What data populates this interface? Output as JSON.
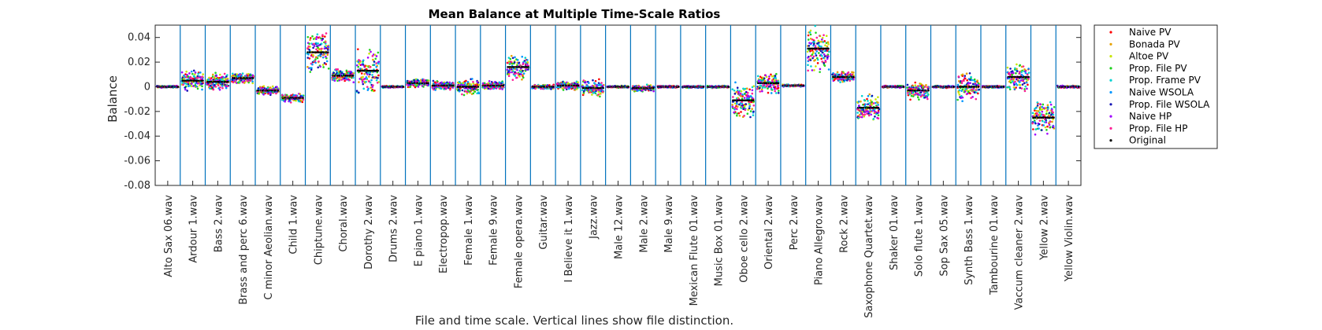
{
  "chart_data": {
    "type": "scatter",
    "title": "Mean Balance at Multiple Time-Scale Ratios",
    "xlabel": "File and time scale. Vertical lines show file distinction.",
    "ylabel": "Balance",
    "ylim": [
      -0.08,
      0.05
    ],
    "yticks": [
      0.04,
      0.02,
      0,
      -0.02,
      -0.04,
      -0.06,
      -0.08
    ],
    "ytick_labels": [
      "0.04",
      "0.02",
      "0",
      "-0.02",
      "-0.04",
      "-0.06",
      "-0.08"
    ],
    "grid": false,
    "legend_position": "outside-right",
    "categories": [
      "Alto Sax 06.wav",
      "Ardour 1.wav",
      "Bass 2.wav",
      "Brass and perc 6.wav",
      "C minor Aeolian.wav",
      "Child 1.wav",
      "Chiptune.wav",
      "Choral.wav",
      "Dorothy 2.wav",
      "Drums 2.wav",
      "E piano 1.wav",
      "Electropop.wav",
      "Female 1.wav",
      "Female 9.wav",
      "Female opera.wav",
      "Guitar.wav",
      "I Believe it 1.wav",
      "Jazz.wav",
      "Male 12.wav",
      "Male 2.wav",
      "Male 9.wav",
      "Mexican Flute 01.wav",
      "Music Box 01.wav",
      "Oboe cello 2.wav",
      "Oriental 2.wav",
      "Perc 2.wav",
      "Piano Allegro.wav",
      "Rock 2.wav",
      "Saxophone Quartet.wav",
      "Shaker 01.wav",
      "Solo flute 1.wav",
      "Sop Sax 05.wav",
      "Synth Bass 1.wav",
      "Tambourine 01.wav",
      "Vaccum cleaner 2.wav",
      "Yellow 2.wav",
      "Yellow Violin.wav"
    ],
    "series": [
      {
        "name": "Naive PV",
        "color": "#ff0000"
      },
      {
        "name": "Bonada PV",
        "color": "#e6a000"
      },
      {
        "name": "Altoe PV",
        "color": "#c8e600"
      },
      {
        "name": "Prop. File PV",
        "color": "#1ed21e"
      },
      {
        "name": "Prop. Frame PV",
        "color": "#00d2d2"
      },
      {
        "name": "Naive WSOLA",
        "color": "#0096ff"
      },
      {
        "name": "Prop. File WSOLA",
        "color": "#1414b4"
      },
      {
        "name": "Naive HP",
        "color": "#a000ff"
      },
      {
        "name": "Prop. File HP",
        "color": "#ff1e96"
      },
      {
        "name": "Original",
        "color": "#000000"
      }
    ],
    "original_values": [
      0.0,
      0.005,
      0.004,
      0.007,
      -0.003,
      -0.009,
      0.028,
      0.009,
      0.013,
      0.0,
      0.003,
      0.001,
      0.0,
      0.001,
      0.016,
      0.0,
      0.001,
      -0.001,
      0.0,
      -0.001,
      0.0,
      0.0,
      0.0,
      -0.011,
      0.003,
      0.001,
      0.031,
      0.008,
      -0.017,
      0.0,
      -0.003,
      0.0,
      0.0,
      0.0,
      0.008,
      -0.025,
      0.0
    ],
    "spread": [
      0.001,
      0.009,
      0.008,
      0.005,
      0.004,
      0.004,
      0.018,
      0.006,
      0.022,
      0.001,
      0.004,
      0.004,
      0.007,
      0.004,
      0.011,
      0.002,
      0.004,
      0.008,
      0.001,
      0.003,
      0.001,
      0.001,
      0.001,
      0.016,
      0.009,
      0.001,
      0.022,
      0.005,
      0.011,
      0.001,
      0.008,
      0.001,
      0.012,
      0.001,
      0.012,
      0.016,
      0.001
    ]
  }
}
